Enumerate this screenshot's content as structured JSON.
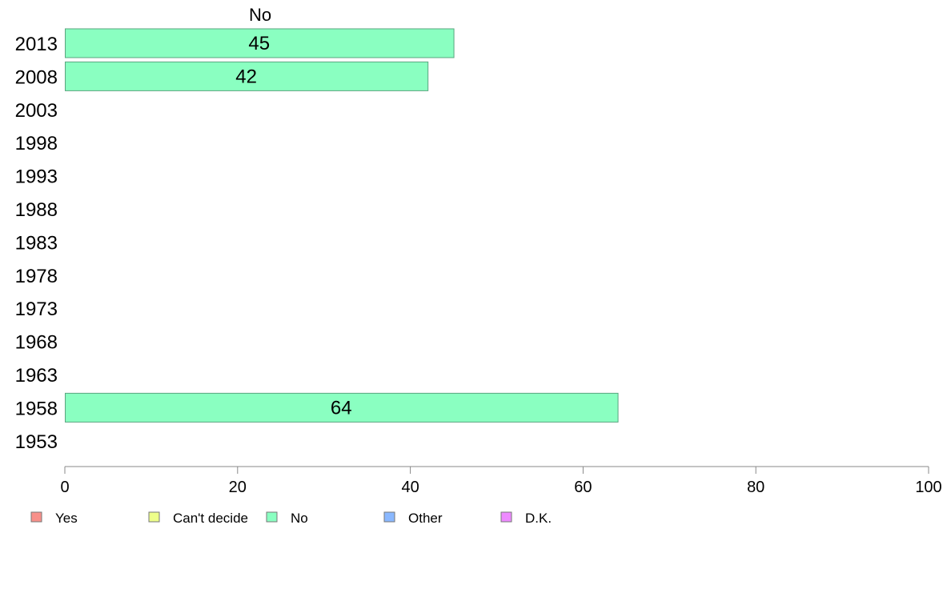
{
  "chart_data": {
    "type": "bar",
    "orientation": "horizontal",
    "column_header": "No",
    "categories": [
      "2013",
      "2008",
      "2003",
      "1998",
      "1993",
      "1988",
      "1983",
      "1978",
      "1973",
      "1968",
      "1963",
      "1958",
      "1953"
    ],
    "series": [
      {
        "name": "No",
        "color": "#8affc1",
        "values": [
          45,
          42,
          null,
          null,
          null,
          null,
          null,
          null,
          null,
          null,
          null,
          64,
          null
        ]
      }
    ],
    "xlim": [
      0,
      100
    ],
    "xticks": [
      0,
      20,
      40,
      60,
      80,
      100
    ],
    "grid": false,
    "legend": {
      "placement": "bottom",
      "items": [
        {
          "label": "Yes",
          "color": "#f8908a"
        },
        {
          "label": "Can't decide",
          "color": "#eeff8a"
        },
        {
          "label": "No",
          "color": "#8affc1"
        },
        {
          "label": "Other",
          "color": "#8ab8ff"
        },
        {
          "label": "D.K.",
          "color": "#ee8aff"
        }
      ]
    }
  }
}
